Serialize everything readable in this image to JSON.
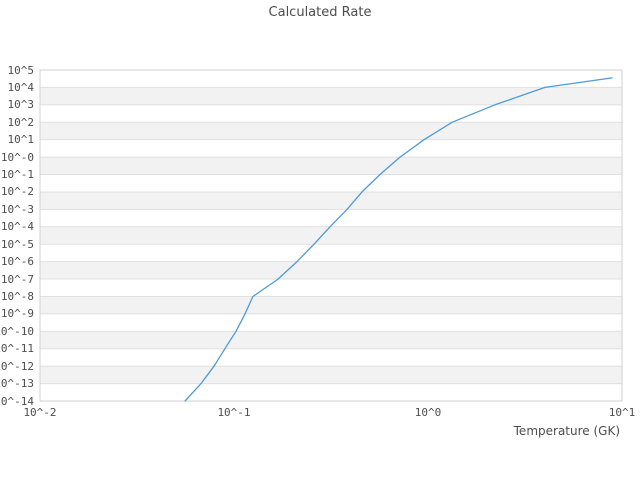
{
  "title": "Calculated Rate",
  "colors": {
    "background": "#ffffff",
    "band_gray": "#f2f2f2",
    "band_white": "#ffffff",
    "gridline": "#e0e0e0",
    "plot_border": "#d0d0d0",
    "text": "#4d4d4d",
    "line": "#4f9ad8"
  },
  "chart_data": {
    "type": "line",
    "title": "Calculated Rate",
    "xlabel": "Temperature (GK)",
    "ylabel": "",
    "x_scale": "log",
    "y_scale": "log",
    "xlim": [
      0.01,
      10
    ],
    "ylim": [
      1e-14,
      100000.0
    ],
    "grid": {
      "horizontal_decade_bands": true,
      "vertical_gridlines": false
    },
    "legend": null,
    "x_ticks": [
      {
        "value": 0.01,
        "label": "10^-2"
      },
      {
        "value": 0.1,
        "label": "10^-1"
      },
      {
        "value": 1,
        "label": "10^0"
      },
      {
        "value": 10,
        "label": "10^1"
      }
    ],
    "y_ticks": [
      {
        "value": 100000.0,
        "label": "10^5"
      },
      {
        "value": 10000.0,
        "label": "10^4"
      },
      {
        "value": 1000.0,
        "label": "10^3"
      },
      {
        "value": 100.0,
        "label": "10^2"
      },
      {
        "value": 10.0,
        "label": "10^1"
      },
      {
        "value": 1,
        "label": "10^-0"
      },
      {
        "value": 0.1,
        "label": "10^-1"
      },
      {
        "value": 0.01,
        "label": "10^-2"
      },
      {
        "value": 0.001,
        "label": "10^-3"
      },
      {
        "value": 0.0001,
        "label": "10^-4"
      },
      {
        "value": 1e-05,
        "label": "10^-5"
      },
      {
        "value": 1e-06,
        "label": "10^-6"
      },
      {
        "value": 1e-07,
        "label": "10^-7"
      },
      {
        "value": 1e-08,
        "label": "10^-8"
      },
      {
        "value": 1e-09,
        "label": "10^-9"
      },
      {
        "value": 1e-10,
        "label": "10^-10"
      },
      {
        "value": 1e-11,
        "label": "10^-11"
      },
      {
        "value": 1e-12,
        "label": "10^-12"
      },
      {
        "value": 1e-13,
        "label": "10^-13"
      },
      {
        "value": 1e-14,
        "label": "10^-14"
      }
    ],
    "series": [
      {
        "name": "calculated rate",
        "color": "#4f9ad8",
        "x_is_temperature_GK": true,
        "points": [
          [
            0.0559,
            1e-14
          ],
          [
            0.0676,
            1e-13
          ],
          [
            0.0789,
            1e-12
          ],
          [
            0.0898,
            1e-11
          ],
          [
            0.1024,
            1e-10
          ],
          [
            0.114,
            1e-09
          ],
          [
            0.1252,
            1e-08
          ],
          [
            0.1686,
            1e-07
          ],
          [
            0.2112,
            1e-06
          ],
          [
            0.2585,
            1e-05
          ],
          [
            0.3125,
            0.0001
          ],
          [
            0.3823,
            0.001
          ],
          [
            0.4569,
            0.01
          ],
          [
            0.5657,
            0.1
          ],
          [
            0.7173,
            1
          ],
          [
            0.9537,
            10
          ],
          [
            1.33,
            100
          ],
          [
            2.216,
            1000
          ],
          [
            4.01,
            10000
          ],
          [
            8.88,
            35000
          ]
        ]
      }
    ]
  }
}
